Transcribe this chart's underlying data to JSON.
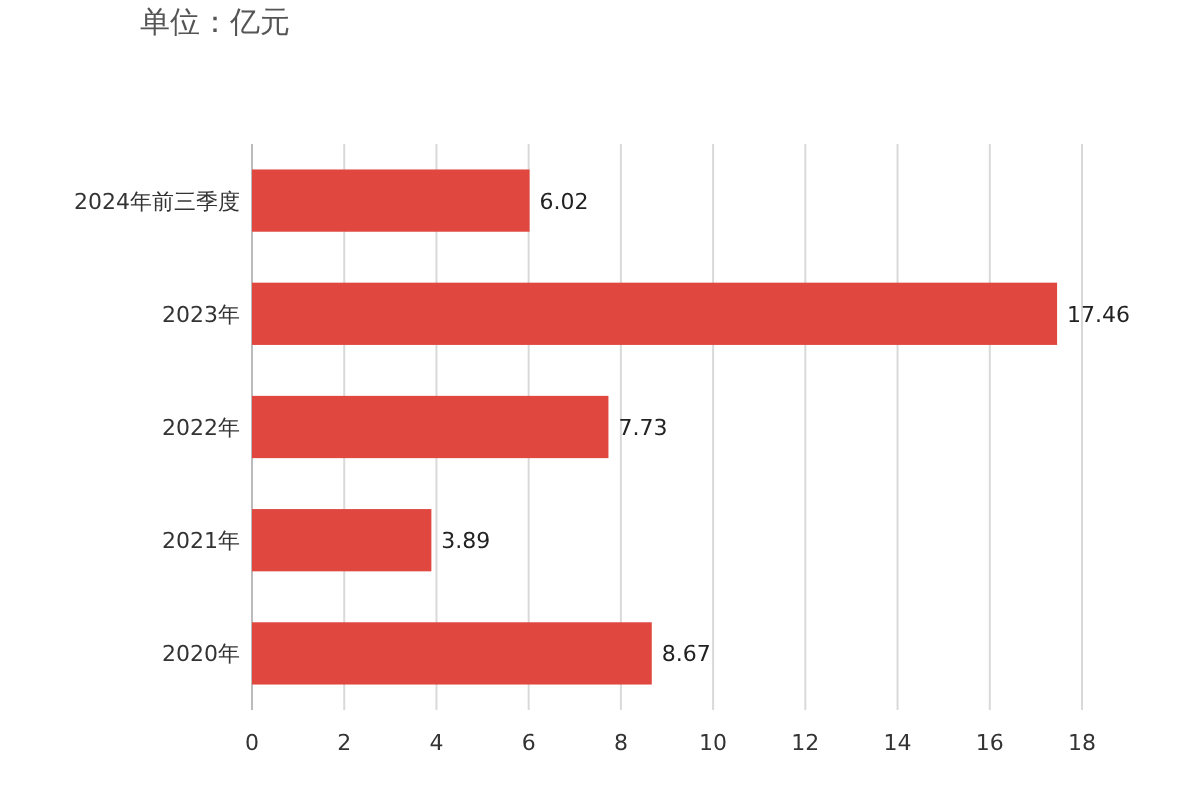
{
  "chart_data": {
    "type": "bar",
    "orientation": "horizontal",
    "title": "单位：亿元",
    "categories": [
      "2024年前三季度",
      "2023年",
      "2022年",
      "2021年",
      "2020年"
    ],
    "values": [
      6.02,
      17.46,
      7.73,
      3.89,
      8.67
    ],
    "color": "#e0473f",
    "xlim": [
      0,
      18
    ],
    "xticks": [
      0,
      2,
      4,
      6,
      8,
      10,
      12,
      14,
      16,
      18
    ],
    "grid": "x",
    "data_labels": true
  }
}
